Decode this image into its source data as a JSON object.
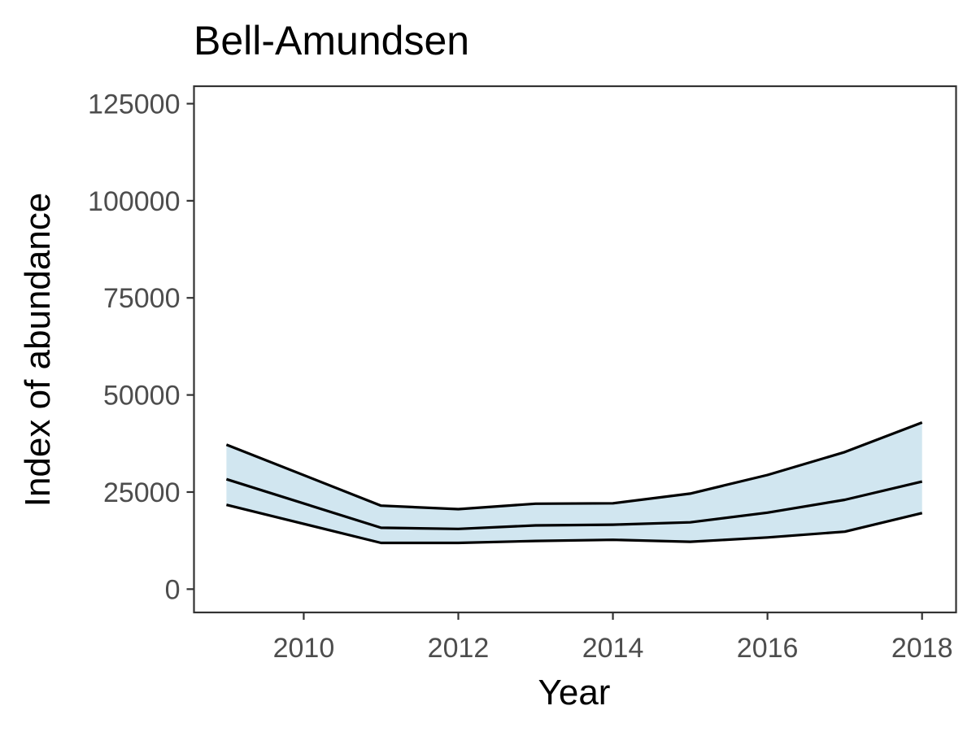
{
  "chart_data": {
    "type": "area",
    "title": "Bell-Amundsen",
    "xlabel": "Year",
    "ylabel": "Index of abundance",
    "x": [
      2009,
      2011,
      2012,
      2013,
      2014,
      2015,
      2016,
      2017,
      2018
    ],
    "series": [
      {
        "values": [
          37200,
          21500,
          20600,
          22000,
          22100,
          24600,
          29400,
          35300,
          42900
        ]
      },
      {
        "values": [
          28300,
          15800,
          15500,
          16400,
          16600,
          17200,
          19700,
          23000,
          27700
        ]
      },
      {
        "values": [
          21700,
          11900,
          11900,
          12400,
          12700,
          12200,
          13300,
          14800,
          19600
        ]
      }
    ],
    "band": {
      "upper_series": 0,
      "lower_series": 2
    },
    "xlim": [
      2008.58,
      2018.44
    ],
    "ylim": [
      -6000,
      129500
    ],
    "xticks": [
      2010,
      2012,
      2014,
      2016,
      2018
    ],
    "yticks": [
      0,
      25000,
      50000,
      75000,
      100000,
      125000
    ],
    "grid": false,
    "legend": "none",
    "colors": {
      "ribbon": "#d1e6f0",
      "line": "#000000",
      "border": "#333333",
      "tick_text": "#4d4d4d"
    }
  }
}
